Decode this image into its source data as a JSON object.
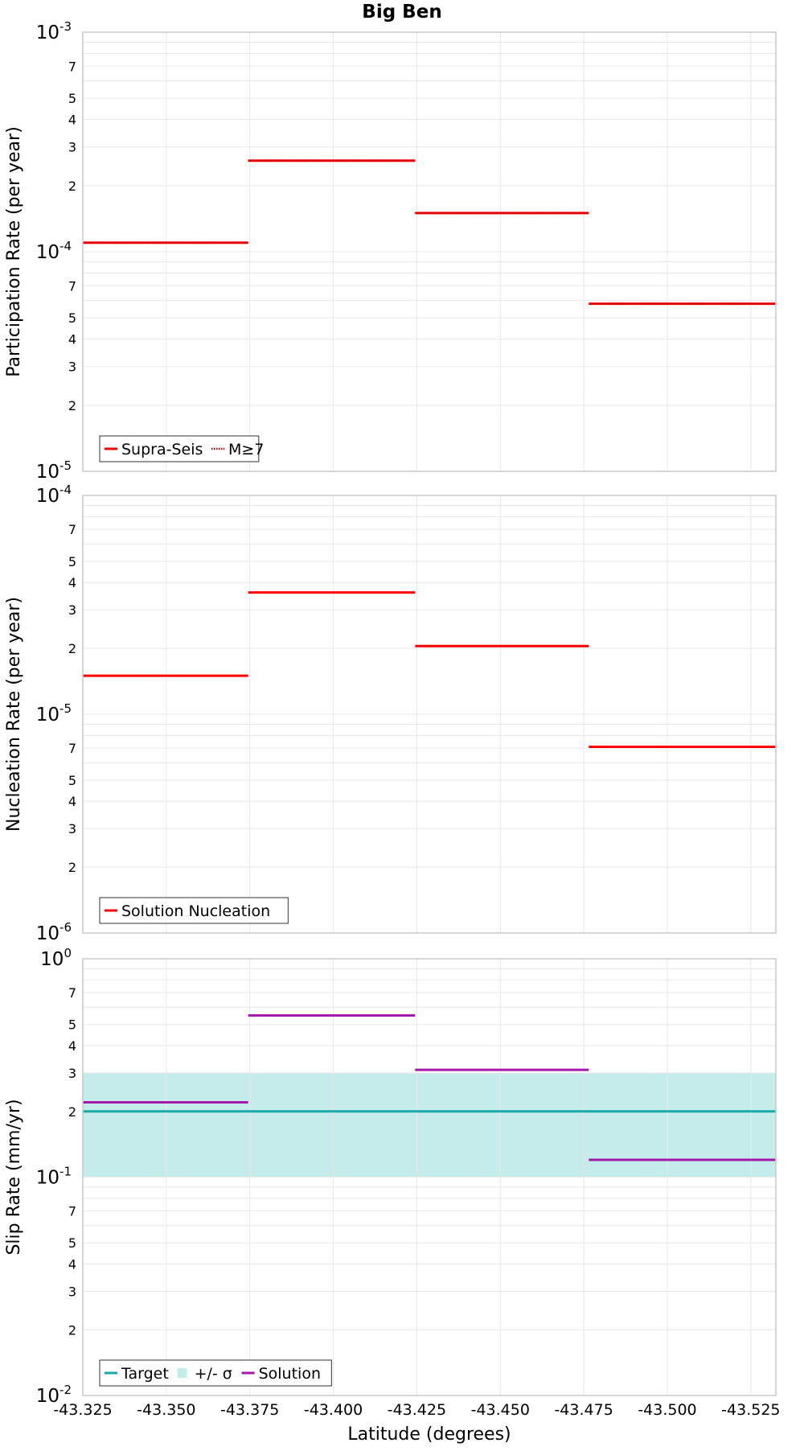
{
  "title": "Big Ben",
  "xlabel": "Latitude (degrees)",
  "x_ticks": [
    "-43.325",
    "-43.350",
    "-43.375",
    "-43.400",
    "-43.425",
    "-43.450",
    "-43.475",
    "-43.500",
    "-43.525"
  ],
  "colors": {
    "red": "#ff0000",
    "teal": "#1aaaa8",
    "band": "#c3eceb",
    "purple": "#a31aa8",
    "grid": "#e8e8e8",
    "frame": "#c8c8c8"
  },
  "chart_data": [
    {
      "type": "line",
      "ylabel": "Participation Rate (per year)",
      "yscale": "log",
      "ylim": [
        1e-05,
        0.001
      ],
      "xlim": [
        -43.325,
        -43.5325
      ],
      "legend_placement": "bottom-left",
      "grid": true,
      "series": [
        {
          "name": "Supra-Seis",
          "style": "solid",
          "color": "#ff0000",
          "segments": [
            {
              "x": [
                -43.325,
                -43.3745
              ],
              "y": 0.00011
            },
            {
              "x": [
                -43.3745,
                -43.4245
              ],
              "y": 0.00026
            },
            {
              "x": [
                -43.4245,
                -43.4765
              ],
              "y": 0.00015
            },
            {
              "x": [
                -43.4765,
                -43.5325
              ],
              "y": 5.8e-05
            }
          ]
        },
        {
          "name": "M≥7",
          "style": "dotted",
          "color": "#ff0000",
          "segments": [
            {
              "x": [
                -43.325,
                -43.3745
              ],
              "y": 0.00011
            },
            {
              "x": [
                -43.3745,
                -43.4245
              ],
              "y": 0.00026
            },
            {
              "x": [
                -43.4245,
                -43.4765
              ],
              "y": 0.00015
            },
            {
              "x": [
                -43.4765,
                -43.5325
              ],
              "y": 5.8e-05
            }
          ]
        }
      ]
    },
    {
      "type": "line",
      "ylabel": "Nucleation Rate (per year)",
      "yscale": "log",
      "ylim": [
        1e-06,
        0.0001
      ],
      "xlim": [
        -43.325,
        -43.5325
      ],
      "legend_placement": "bottom-left",
      "grid": true,
      "series": [
        {
          "name": "Solution Nucleation",
          "style": "solid",
          "color": "#ff0000",
          "segments": [
            {
              "x": [
                -43.325,
                -43.3745
              ],
              "y": 1.5e-05
            },
            {
              "x": [
                -43.3745,
                -43.4245
              ],
              "y": 3.6e-05
            },
            {
              "x": [
                -43.4245,
                -43.4765
              ],
              "y": 2.05e-05
            },
            {
              "x": [
                -43.4765,
                -43.5325
              ],
              "y": 7.1e-06
            }
          ]
        }
      ]
    },
    {
      "type": "line",
      "ylabel": "Slip Rate (mm/yr)",
      "yscale": "log",
      "ylim": [
        0.01,
        1
      ],
      "xlim": [
        -43.325,
        -43.5325
      ],
      "legend_placement": "bottom-left",
      "grid": true,
      "band": {
        "name": "+/- σ",
        "y_low": 0.1,
        "y_high": 0.3,
        "color": "#c3eceb"
      },
      "series": [
        {
          "name": "Target",
          "style": "solid",
          "color": "#1aaaa8",
          "segments": [
            {
              "x": [
                -43.325,
                -43.5325
              ],
              "y": 0.2
            }
          ]
        },
        {
          "name": "Solution",
          "style": "solid",
          "color": "#a31aa8",
          "segments": [
            {
              "x": [
                -43.325,
                -43.3745
              ],
              "y": 0.22
            },
            {
              "x": [
                -43.3745,
                -43.4245
              ],
              "y": 0.55
            },
            {
              "x": [
                -43.4245,
                -43.4765
              ],
              "y": 0.31
            },
            {
              "x": [
                -43.4765,
                -43.5325
              ],
              "y": 0.12
            }
          ]
        }
      ],
      "legend_order": [
        "Target",
        "+/- σ",
        "Solution"
      ]
    }
  ]
}
